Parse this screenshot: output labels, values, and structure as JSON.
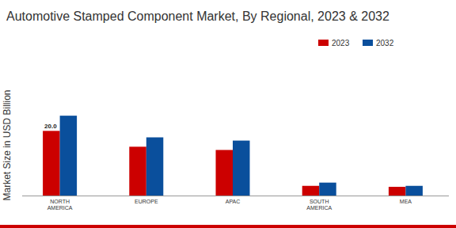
{
  "chart_data": {
    "type": "bar",
    "title": "Automotive Stamped Component Market, By Regional, 2023 & 2032",
    "y_label": "Market Size in USD Billion",
    "categories": [
      "NORTH AMERICA",
      "EUROPE",
      "APAC",
      "SOUTH AMERICA",
      "MEA"
    ],
    "series": [
      {
        "name": "2023",
        "color": "#cc0000",
        "values": [
          20.0,
          15.1,
          14.1,
          3.0,
          2.7
        ],
        "value_labels": [
          "20.0",
          null,
          null,
          null,
          null
        ]
      },
      {
        "name": "2032",
        "color": "#0a4f9c",
        "values": [
          24.7,
          18.0,
          17.0,
          4.0,
          3.0
        ]
      }
    ],
    "ylim": [
      0,
      36
    ],
    "yticks": [],
    "grid": false,
    "legend": "top-right",
    "tick_labels": "x"
  }
}
